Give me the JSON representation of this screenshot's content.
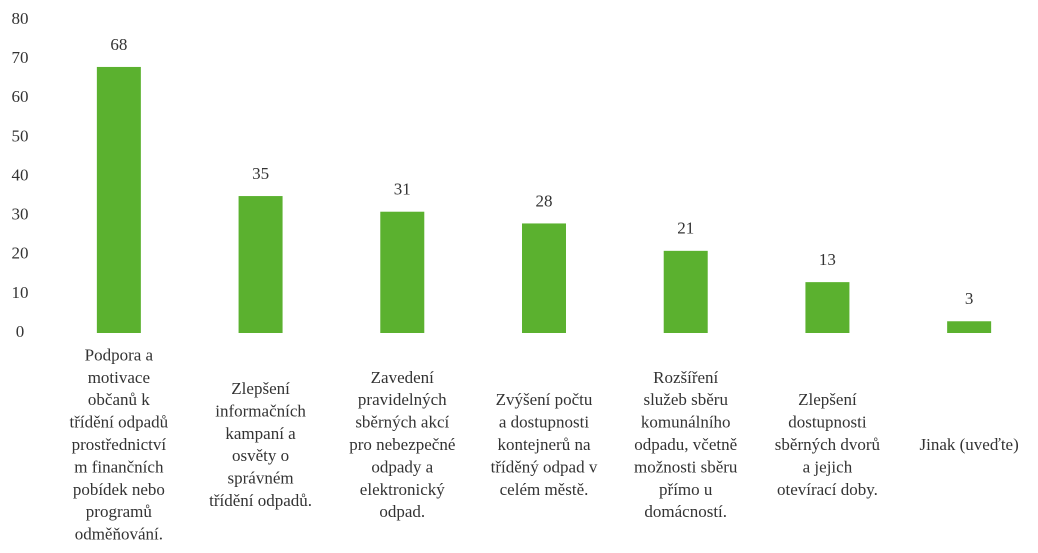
{
  "chart_data": {
    "type": "bar",
    "categories": [
      "Podpora a\nmotivace\nobčanů k\ntřídění odpadů\nprostřednictví\nm finančních\npobídek nebo\nprogramů\nodměňování.",
      "Zlepšení\ninformačních\nkampaní a\nosvěty o\nsprávném\ntřídění odpadů.",
      "Zavedení\npravidelných\nsběrných akcí\npro nebezpečné\nodpady a\nelektronický\nodpad.",
      "Zvýšení počtu\na dostupnosti\nkontejnerů na\ntříděný odpad v\ncelém městě.",
      "Rozšíření\nslužeb sběru\nkomunálního\nodpadu, včetně\nmožnosti sběru\npřímo u\ndomácností.",
      "Zlepšení\ndostupnosti\nsběrných dvorů\na jejich\notevírací doby.",
      "Jinak (uveďte)"
    ],
    "values": [
      68,
      35,
      31,
      28,
      21,
      13,
      3
    ],
    "color": "#5bb12f",
    "ylim": [
      0,
      80
    ],
    "yticks": [
      0,
      10,
      20,
      30,
      40,
      50,
      60,
      70,
      80
    ],
    "grid": false
  }
}
